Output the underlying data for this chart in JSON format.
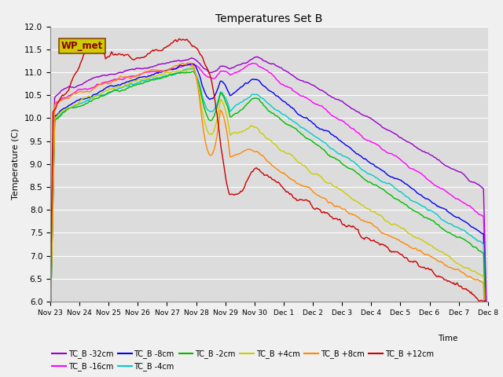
{
  "title": "Temperatures Set B",
  "xlabel": "Time",
  "ylabel": "Temperature (C)",
  "ylim": [
    6.0,
    12.0
  ],
  "yticks": [
    6.0,
    6.5,
    7.0,
    7.5,
    8.0,
    8.5,
    9.0,
    9.5,
    10.0,
    10.5,
    11.0,
    11.5,
    12.0
  ],
  "xtick_labels": [
    "Nov 23",
    "Nov 24",
    "Nov 25",
    "Nov 26",
    "Nov 27",
    "Nov 28",
    "Nov 29",
    "Nov 30",
    "Dec 1",
    "Dec 2",
    "Dec 3",
    "Dec 4",
    "Dec 5",
    "Dec 6",
    "Dec 7",
    "Dec 8"
  ],
  "series": [
    {
      "label": "TC_B -32cm",
      "color": "#9900CC"
    },
    {
      "label": "TC_B -16cm",
      "color": "#FF00FF"
    },
    {
      "label": "TC_B -8cm",
      "color": "#0000EE"
    },
    {
      "label": "TC_B -4cm",
      "color": "#00CCCC"
    },
    {
      "label": "TC_B -2cm",
      "color": "#00BB00"
    },
    {
      "label": "TC_B +4cm",
      "color": "#CCCC00"
    },
    {
      "label": "TC_B +8cm",
      "color": "#FF8800"
    },
    {
      "label": "TC_B +12cm",
      "color": "#CC0000"
    }
  ],
  "background_color": "#DCDCDC",
  "fig_background": "#F0F0F0",
  "wp_met_box_color": "#CCCC00",
  "wp_met_text_color": "#8B0000",
  "grid_color": "#FFFFFF"
}
